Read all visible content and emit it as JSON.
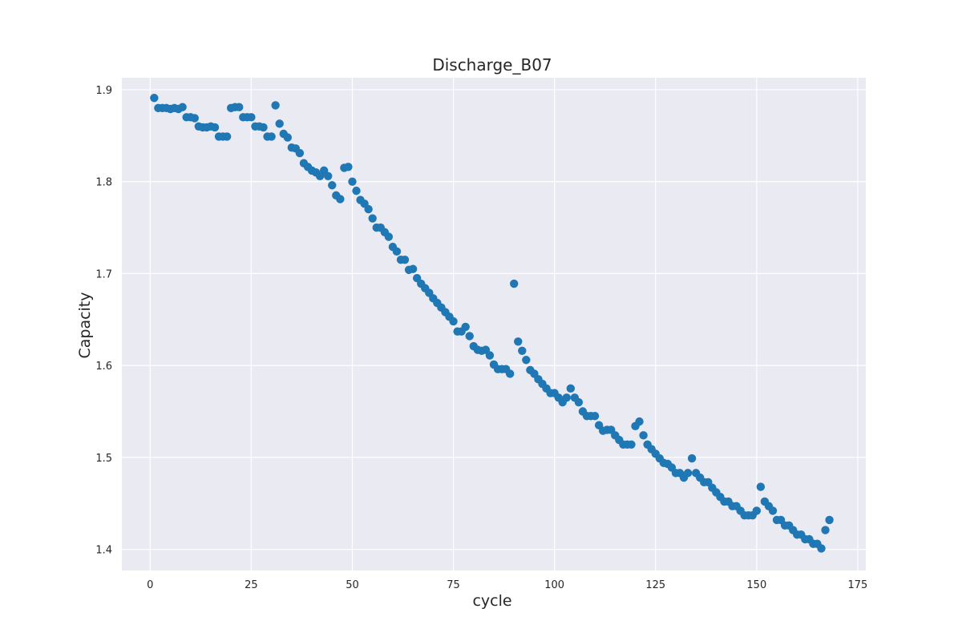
{
  "chart_data": {
    "type": "scatter",
    "title": "Discharge_B07",
    "xlabel": "cycle",
    "ylabel": "Capacity",
    "xlim": [
      -7,
      177
    ],
    "ylim": [
      1.377,
      1.913
    ],
    "xticks": [
      0,
      25,
      50,
      75,
      100,
      125,
      150,
      175
    ],
    "yticks": [
      1.4,
      1.5,
      1.6,
      1.7,
      1.8,
      1.9
    ],
    "xtick_labels": [
      "0",
      "25",
      "50",
      "75",
      "100",
      "125",
      "150",
      "175"
    ],
    "ytick_labels": [
      "1.4",
      "1.5",
      "1.6",
      "1.7",
      "1.8",
      "1.9"
    ],
    "grid": true,
    "background": "#eaeaf2",
    "grid_color": "#ffffff",
    "marker_color": "#1f77b4",
    "series": [
      {
        "x": [
          1,
          2,
          3,
          4,
          5,
          6,
          7,
          8,
          9,
          10,
          11,
          12,
          13,
          14,
          15,
          16,
          17,
          18,
          19,
          20,
          21,
          22,
          23,
          24,
          25,
          26,
          27,
          28,
          29,
          30,
          31,
          32,
          33,
          34,
          35,
          36,
          37,
          38,
          39,
          40,
          41,
          42,
          43,
          44,
          45,
          46,
          47,
          48,
          49,
          50,
          51,
          52,
          53,
          54,
          55,
          56,
          57,
          58,
          59,
          60,
          61,
          62,
          63,
          64,
          65,
          66,
          67,
          68,
          69,
          70,
          71,
          72,
          73,
          74,
          75,
          76,
          77,
          78,
          79,
          80,
          81,
          82,
          83,
          84,
          85,
          86,
          87,
          88,
          89,
          90,
          91,
          92,
          93,
          94,
          95,
          96,
          97,
          98,
          99,
          100,
          101,
          102,
          103,
          104,
          105,
          106,
          107,
          108,
          109,
          110,
          111,
          112,
          113,
          114,
          115,
          116,
          117,
          118,
          119,
          120,
          121,
          122,
          123,
          124,
          125,
          126,
          127,
          128,
          129,
          130,
          131,
          132,
          133,
          134,
          135,
          136,
          137,
          138,
          139,
          140,
          141,
          142,
          143,
          144,
          145,
          146,
          147,
          148,
          149,
          150,
          151,
          152,
          153,
          154,
          155,
          156,
          157,
          158,
          159,
          160,
          161,
          162,
          163,
          164,
          165,
          166,
          167,
          168
        ],
        "y": [
          1.891,
          1.88,
          1.88,
          1.88,
          1.879,
          1.88,
          1.879,
          1.881,
          1.87,
          1.87,
          1.869,
          1.86,
          1.859,
          1.859,
          1.86,
          1.859,
          1.849,
          1.849,
          1.849,
          1.88,
          1.881,
          1.881,
          1.87,
          1.87,
          1.87,
          1.86,
          1.86,
          1.859,
          1.849,
          1.849,
          1.883,
          1.863,
          1.852,
          1.848,
          1.837,
          1.836,
          1.831,
          1.82,
          1.816,
          1.812,
          1.81,
          1.806,
          1.812,
          1.806,
          1.796,
          1.785,
          1.781,
          1.815,
          1.816,
          1.8,
          1.79,
          1.78,
          1.776,
          1.77,
          1.76,
          1.75,
          1.75,
          1.745,
          1.74,
          1.729,
          1.724,
          1.715,
          1.715,
          1.704,
          1.705,
          1.695,
          1.689,
          1.684,
          1.679,
          1.673,
          1.668,
          1.663,
          1.658,
          1.653,
          1.648,
          1.637,
          1.637,
          1.642,
          1.632,
          1.621,
          1.617,
          1.616,
          1.617,
          1.611,
          1.601,
          1.596,
          1.596,
          1.596,
          1.591,
          1.689,
          1.626,
          1.616,
          1.606,
          1.595,
          1.591,
          1.585,
          1.58,
          1.575,
          1.57,
          1.57,
          1.565,
          1.56,
          1.565,
          1.575,
          1.565,
          1.56,
          1.55,
          1.545,
          1.545,
          1.545,
          1.535,
          1.529,
          1.53,
          1.53,
          1.524,
          1.519,
          1.514,
          1.514,
          1.514,
          1.534,
          1.539,
          1.524,
          1.514,
          1.509,
          1.504,
          1.499,
          1.494,
          1.493,
          1.489,
          1.483,
          1.483,
          1.478,
          1.483,
          1.499,
          1.483,
          1.478,
          1.473,
          1.473,
          1.467,
          1.462,
          1.457,
          1.452,
          1.452,
          1.447,
          1.447,
          1.442,
          1.437,
          1.437,
          1.437,
          1.442,
          1.468,
          1.452,
          1.447,
          1.442,
          1.432,
          1.432,
          1.426,
          1.426,
          1.421,
          1.416,
          1.416,
          1.411,
          1.411,
          1.406,
          1.406,
          1.401,
          1.421,
          1.432
        ]
      }
    ]
  }
}
